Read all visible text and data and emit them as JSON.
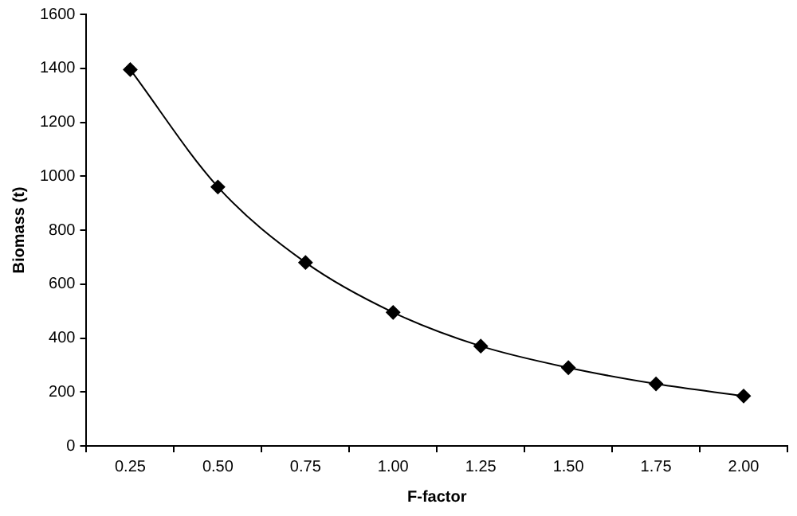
{
  "chart_data": {
    "type": "line",
    "xlabel": "F-factor",
    "ylabel": "Biomass (t)",
    "categories": [
      "0.25",
      "0.50",
      "0.75",
      "1.00",
      "1.25",
      "1.50",
      "1.75",
      "2.00"
    ],
    "series": [
      {
        "color": "#000000",
        "values": [
          1395,
          960,
          680,
          495,
          370,
          290,
          230,
          185
        ]
      }
    ],
    "ylim": [
      0,
      1600
    ],
    "yticks": [
      0,
      200,
      400,
      600,
      800,
      1000,
      1200,
      1400,
      1600
    ],
    "grid": false,
    "legend": false,
    "marker": "diamond",
    "line_style": "solid"
  }
}
